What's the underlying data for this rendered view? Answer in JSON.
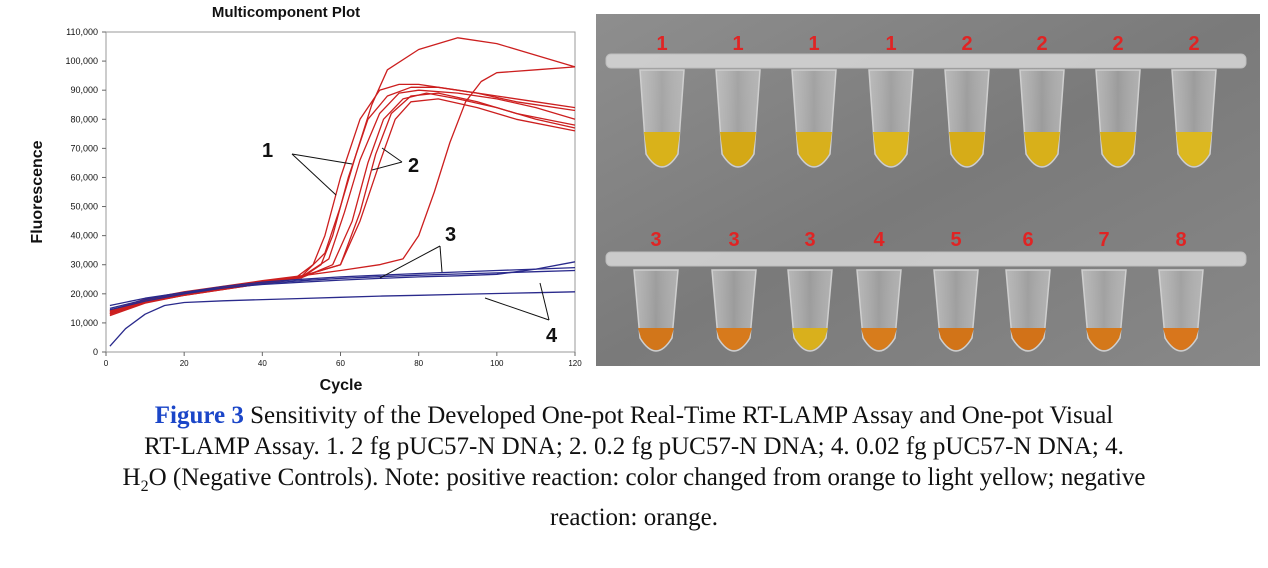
{
  "figure": {
    "label": "Figure 3",
    "caption_line1": "Sensitivity of the Developed One-pot Real-Time RT-LAMP Assay and One-pot Visual",
    "caption_line2": "RT-LAMP Assay. 1. 2 fg pUC57-N DNA; 2. 0.2 fg pUC57-N DNA; 4. 0.02 fg pUC57-N DNA; 4.",
    "caption_line3_pre": "H",
    "caption_line3_sub": "2",
    "caption_line3_post": "O (Negative Controls). Note: positive reaction: color changed from orange to light yellow; negative",
    "caption_line4": "reaction: orange."
  },
  "chart_data": {
    "type": "line",
    "title": "Multicomponent Plot",
    "xlabel": "Cycle",
    "ylabel": "Fluorescence",
    "xlim": [
      0,
      120
    ],
    "ylim": [
      0,
      110000
    ],
    "xticks": [
      0,
      20,
      40,
      60,
      80,
      100,
      120
    ],
    "yticks": [
      0,
      10000,
      20000,
      30000,
      40000,
      50000,
      60000,
      70000,
      80000,
      90000,
      100000,
      110000
    ],
    "ytick_labels": [
      "0",
      "10,000",
      "20,000",
      "30,000",
      "40,000",
      "50,000",
      "60,000",
      "70,000",
      "80,000",
      "90,000",
      "100,000",
      "110,000"
    ],
    "annotations": [
      "1",
      "2",
      "3",
      "4"
    ],
    "series": [
      {
        "name": "1",
        "color": "#cc1f1f",
        "x": [
          1,
          10,
          20,
          30,
          40,
          48,
          53,
          56,
          60,
          65,
          70,
          75,
          80,
          90,
          100,
          110,
          120
        ],
        "y": [
          13000,
          17000,
          19500,
          21500,
          23500,
          25000,
          30000,
          40000,
          60000,
          80000,
          90000,
          92000,
          92000,
          90000,
          88000,
          86000,
          84000
        ]
      },
      {
        "name": "1",
        "color": "#cc1f1f",
        "x": [
          1,
          10,
          20,
          30,
          40,
          50,
          55,
          58,
          62,
          67,
          72,
          78,
          85,
          95,
          105,
          120
        ],
        "y": [
          13500,
          17500,
          20000,
          22000,
          24000,
          25500,
          30000,
          40000,
          60000,
          80000,
          88000,
          91000,
          91000,
          89000,
          86000,
          83000
        ]
      },
      {
        "name": "1",
        "color": "#cc1f1f",
        "x": [
          1,
          10,
          20,
          30,
          40,
          50,
          56,
          60,
          64,
          68,
          72,
          80,
          90,
          100,
          110,
          120
        ],
        "y": [
          14000,
          18000,
          20500,
          22500,
          24000,
          26000,
          34000,
          50000,
          68000,
          85000,
          97000,
          104000,
          108000,
          106000,
          102000,
          98000
        ]
      },
      {
        "name": "1",
        "color": "#cc1f1f",
        "x": [
          1,
          10,
          20,
          30,
          40,
          50,
          57,
          61,
          65,
          70,
          75,
          80,
          90,
          100,
          110,
          120
        ],
        "y": [
          13000,
          17200,
          19800,
          21800,
          23800,
          25800,
          32000,
          48000,
          66000,
          82000,
          89000,
          90000,
          89000,
          87000,
          84000,
          80000
        ]
      },
      {
        "name": "2",
        "color": "#cc1f1f",
        "x": [
          1,
          10,
          20,
          30,
          40,
          50,
          58,
          63,
          67,
          71,
          76,
          82,
          90,
          100,
          110,
          120
        ],
        "y": [
          12500,
          16800,
          19500,
          21500,
          23500,
          25500,
          30000,
          45000,
          65000,
          80000,
          87000,
          89000,
          87000,
          84000,
          80000,
          77000
        ]
      },
      {
        "name": "2",
        "color": "#cc1f1f",
        "x": [
          1,
          10,
          20,
          30,
          40,
          50,
          60,
          65,
          70,
          74,
          78,
          85,
          95,
          105,
          120
        ],
        "y": [
          13200,
          17400,
          20000,
          22200,
          24200,
          26000,
          30000,
          45000,
          65000,
          80000,
          86000,
          87000,
          84000,
          80000,
          76000
        ]
      },
      {
        "name": "2",
        "color": "#cc1f1f",
        "x": [
          1,
          10,
          20,
          30,
          40,
          50,
          60,
          65,
          69,
          73,
          78,
          85,
          95,
          105,
          120
        ],
        "y": [
          13800,
          17800,
          20200,
          22300,
          24300,
          26100,
          30000,
          48000,
          68000,
          82000,
          88000,
          89000,
          86000,
          82000,
          78000
        ]
      },
      {
        "name": "2",
        "color": "#cc1f1f",
        "x": [
          1,
          10,
          20,
          30,
          40,
          50,
          60,
          70,
          76,
          80,
          84,
          88,
          92,
          96,
          100,
          110,
          120
        ],
        "y": [
          14200,
          18200,
          20700,
          22600,
          24500,
          26200,
          28000,
          30000,
          32000,
          40000,
          55000,
          72000,
          86000,
          93000,
          96000,
          97000,
          98000
        ]
      },
      {
        "name": "3",
        "color": "#2a2a8c",
        "x": [
          1,
          10,
          20,
          30,
          40,
          50,
          60,
          70,
          80,
          90,
          100,
          110,
          120
        ],
        "y": [
          15000,
          18000,
          20500,
          22500,
          24000,
          25000,
          25800,
          26400,
          27000,
          27500,
          28000,
          28500,
          29000
        ]
      },
      {
        "name": "3",
        "color": "#2a2a8c",
        "x": [
          1,
          10,
          20,
          30,
          40,
          50,
          60,
          70,
          80,
          90,
          100,
          110,
          120
        ],
        "y": [
          14500,
          17500,
          20000,
          22000,
          23500,
          24500,
          25300,
          25900,
          26400,
          26800,
          27200,
          27600,
          28000
        ]
      },
      {
        "name": "3",
        "color": "#2a2a8c",
        "x": [
          1,
          10,
          20,
          30,
          40,
          50,
          60,
          70,
          80,
          90,
          100,
          110,
          120
        ],
        "y": [
          16000,
          18500,
          20500,
          22000,
          23200,
          24000,
          24700,
          25300,
          25800,
          26200,
          26700,
          28500,
          31000
        ]
      },
      {
        "name": "4",
        "color": "#2a2a8c",
        "x": [
          1,
          5,
          10,
          15,
          20,
          30,
          40,
          50,
          60,
          70,
          80,
          90,
          100,
          110,
          120
        ],
        "y": [
          2000,
          8000,
          13000,
          16000,
          17000,
          17600,
          18000,
          18400,
          18800,
          19200,
          19500,
          19800,
          20100,
          20400,
          20700
        ]
      }
    ]
  },
  "photo": {
    "top_row_labels": [
      "1",
      "1",
      "1",
      "1",
      "2",
      "2",
      "2",
      "2"
    ],
    "bottom_row_labels": [
      "3",
      "3",
      "3",
      "4",
      "5",
      "6",
      "7",
      "8"
    ],
    "top_row_colors": [
      "#d9b21a",
      "#d4a816",
      "#d8b01c",
      "#dcb61e",
      "#d6ac18",
      "#d8b01a",
      "#d6ae1a",
      "#dcb820"
    ],
    "bottom_row_colors": [
      "#d2761a",
      "#d77a1c",
      "#d9b01c",
      "#d77c1c",
      "#d27418",
      "#d27218",
      "#d4781a",
      "#d8761c"
    ],
    "label_color": "#e02424"
  }
}
